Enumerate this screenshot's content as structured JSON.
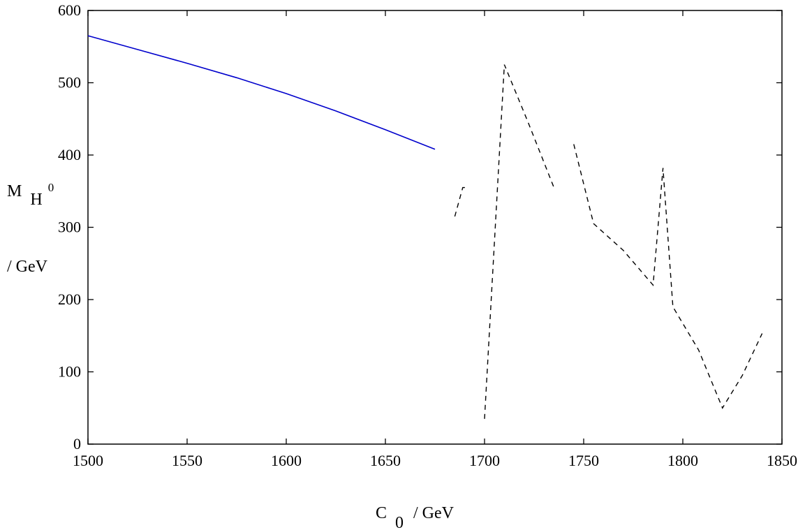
{
  "chart_data": {
    "type": "line",
    "xlabel": {
      "main": "C",
      "sub": "0",
      "unit": " / GeV"
    },
    "ylabel": {
      "main": "M",
      "sub": "H",
      "sup": "0",
      "unit": "/ GeV"
    },
    "xlim": [
      1500,
      1850
    ],
    "ylim": [
      0,
      600
    ],
    "x_ticks": [
      1500,
      1550,
      1600,
      1650,
      1700,
      1750,
      1800,
      1850
    ],
    "y_ticks": [
      0,
      100,
      200,
      300,
      400,
      500,
      600
    ],
    "grid": false,
    "series": [
      {
        "style": "solid",
        "color": "#0000cc",
        "segments": [
          [
            [
              1500,
              565
            ],
            [
              1525,
              546
            ],
            [
              1550,
              527
            ],
            [
              1575,
              507
            ],
            [
              1600,
              485
            ],
            [
              1625,
              461
            ],
            [
              1650,
              435
            ],
            [
              1675,
              408
            ]
          ]
        ]
      },
      {
        "style": "dashed",
        "color": "#000000",
        "segments": [
          [
            [
              1685,
              315
            ],
            [
              1689,
              355
            ],
            [
              1692,
              355
            ]
          ],
          [
            [
              1700,
              35
            ],
            [
              1710,
              525
            ],
            [
              1722,
              445
            ],
            [
              1735,
              355
            ]
          ],
          [
            [
              1745,
              415
            ],
            [
              1755,
              305
            ],
            [
              1770,
              268
            ],
            [
              1785,
              220
            ],
            [
              1790,
              382
            ],
            [
              1795,
              190
            ],
            [
              1808,
              130
            ],
            [
              1820,
              50
            ],
            [
              1830,
              95
            ],
            [
              1840,
              153
            ]
          ]
        ]
      }
    ]
  }
}
